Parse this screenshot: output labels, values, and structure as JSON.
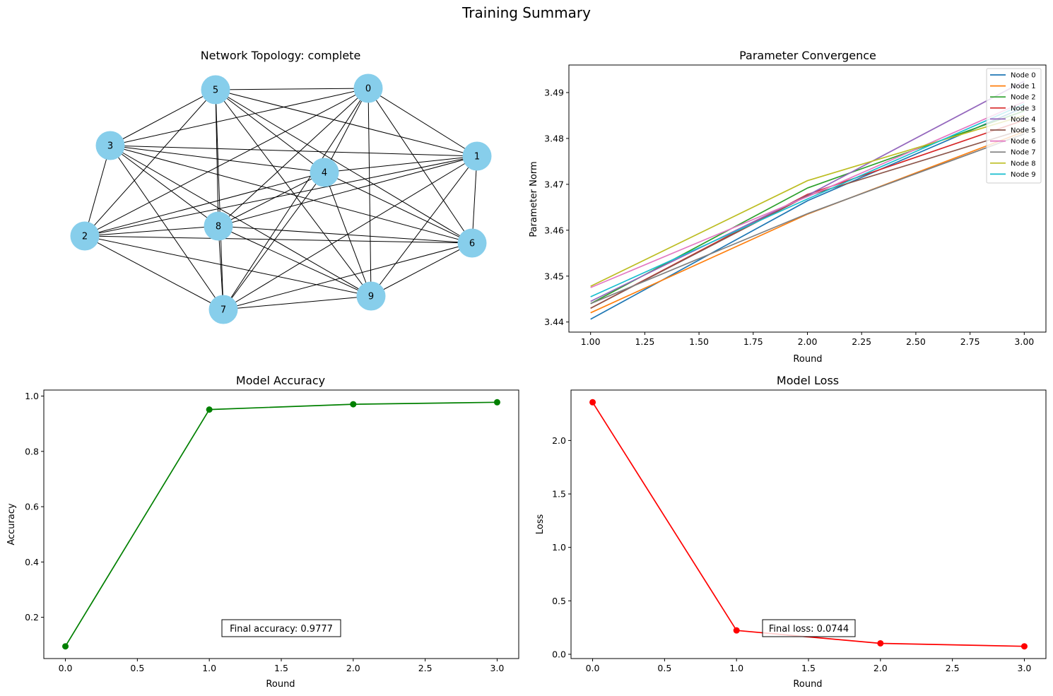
{
  "figure_title": "Training Summary",
  "chart_data": [
    {
      "type": "network",
      "title": "Network Topology: complete",
      "nodes": [
        "0",
        "1",
        "2",
        "3",
        "4",
        "5",
        "6",
        "7",
        "8",
        "9"
      ],
      "node_color": "#87ceeb",
      "edges": [
        [
          0,
          1
        ],
        [
          0,
          2
        ],
        [
          0,
          3
        ],
        [
          0,
          4
        ],
        [
          0,
          5
        ],
        [
          0,
          6
        ],
        [
          0,
          7
        ],
        [
          0,
          8
        ],
        [
          0,
          9
        ],
        [
          1,
          2
        ],
        [
          1,
          3
        ],
        [
          1,
          4
        ],
        [
          1,
          5
        ],
        [
          1,
          6
        ],
        [
          1,
          7
        ],
        [
          1,
          8
        ],
        [
          1,
          9
        ],
        [
          2,
          3
        ],
        [
          2,
          4
        ],
        [
          2,
          5
        ],
        [
          2,
          6
        ],
        [
          2,
          7
        ],
        [
          2,
          8
        ],
        [
          2,
          9
        ],
        [
          3,
          4
        ],
        [
          3,
          5
        ],
        [
          3,
          6
        ],
        [
          3,
          7
        ],
        [
          3,
          8
        ],
        [
          3,
          9
        ],
        [
          4,
          5
        ],
        [
          4,
          6
        ],
        [
          4,
          7
        ],
        [
          4,
          8
        ],
        [
          4,
          9
        ],
        [
          5,
          6
        ],
        [
          5,
          7
        ],
        [
          5,
          8
        ],
        [
          5,
          9
        ],
        [
          6,
          7
        ],
        [
          6,
          8
        ],
        [
          6,
          9
        ],
        [
          7,
          8
        ],
        [
          7,
          9
        ],
        [
          8,
          9
        ]
      ]
    },
    {
      "type": "line",
      "title": "Parameter Convergence",
      "xlabel": "Round",
      "ylabel": "Parameter Norm",
      "x": [
        1,
        2,
        3
      ],
      "xlim": [
        0.9,
        3.1
      ],
      "ylim": [
        3.4378,
        3.496
      ],
      "xticks": [
        "1.00",
        "1.25",
        "1.50",
        "1.75",
        "2.00",
        "2.25",
        "2.50",
        "2.75",
        "3.00"
      ],
      "yticks": [
        "3.44",
        "3.45",
        "3.46",
        "3.47",
        "3.48",
        "3.49"
      ],
      "legend": "top-right",
      "series": [
        {
          "name": "Node 0",
          "color": "#1f77b4",
          "values": [
            3.4406,
            3.4664,
            3.4868
          ]
        },
        {
          "name": "Node 1",
          "color": "#ff7f0e",
          "values": [
            3.442,
            3.4635,
            3.4815
          ]
        },
        {
          "name": "Node 2",
          "color": "#2ca02c",
          "values": [
            3.444,
            3.4692,
            3.486
          ]
        },
        {
          "name": "Node 3",
          "color": "#d62728",
          "values": [
            3.443,
            3.4678,
            3.484
          ]
        },
        {
          "name": "Node 4",
          "color": "#9467bd",
          "values": [
            3.4445,
            3.4676,
            3.4925
          ]
        },
        {
          "name": "Node 5",
          "color": "#8c564b",
          "values": [
            3.443,
            3.4675,
            3.482
          ]
        },
        {
          "name": "Node 6",
          "color": "#e377c2",
          "values": [
            3.4475,
            3.4673,
            3.488
          ]
        },
        {
          "name": "Node 7",
          "color": "#7f7f7f",
          "values": [
            3.444,
            3.4636,
            3.481
          ]
        },
        {
          "name": "Node 8",
          "color": "#bcbd22",
          "values": [
            3.4478,
            3.4708,
            3.485
          ]
        },
        {
          "name": "Node 9",
          "color": "#17becf",
          "values": [
            3.4455,
            3.4668,
            3.4875
          ]
        }
      ]
    },
    {
      "type": "line",
      "title": "Model Accuracy",
      "xlabel": "Round",
      "ylabel": "Accuracy",
      "x": [
        0,
        1,
        2,
        3
      ],
      "values": [
        0.0949,
        0.9512,
        0.9705,
        0.9777
      ],
      "color": "#008000",
      "xlim": [
        -0.15,
        3.15
      ],
      "ylim": [
        0.0508,
        1.0218
      ],
      "xticks": [
        "0.0",
        "0.5",
        "1.0",
        "1.5",
        "2.0",
        "2.5",
        "3.0"
      ],
      "yticks": [
        "0.2",
        "0.4",
        "0.6",
        "0.8",
        "1.0"
      ],
      "annotation": "Final accuracy: 0.9777"
    },
    {
      "type": "line",
      "title": "Model Loss",
      "xlabel": "Round",
      "ylabel": "Loss",
      "x": [
        0,
        1,
        2,
        3
      ],
      "values": [
        2.3577,
        0.2235,
        0.1024,
        0.0744
      ],
      "color": "#ff0000",
      "xlim": [
        -0.15,
        3.15
      ],
      "ylim": [
        -0.0398,
        2.4719
      ],
      "xticks": [
        "0.0",
        "0.5",
        "1.0",
        "1.5",
        "2.0",
        "2.5",
        "3.0"
      ],
      "yticks": [
        "0.0",
        "0.5",
        "1.0",
        "1.5",
        "2.0"
      ],
      "annotation": "Final loss: 0.0744"
    }
  ]
}
